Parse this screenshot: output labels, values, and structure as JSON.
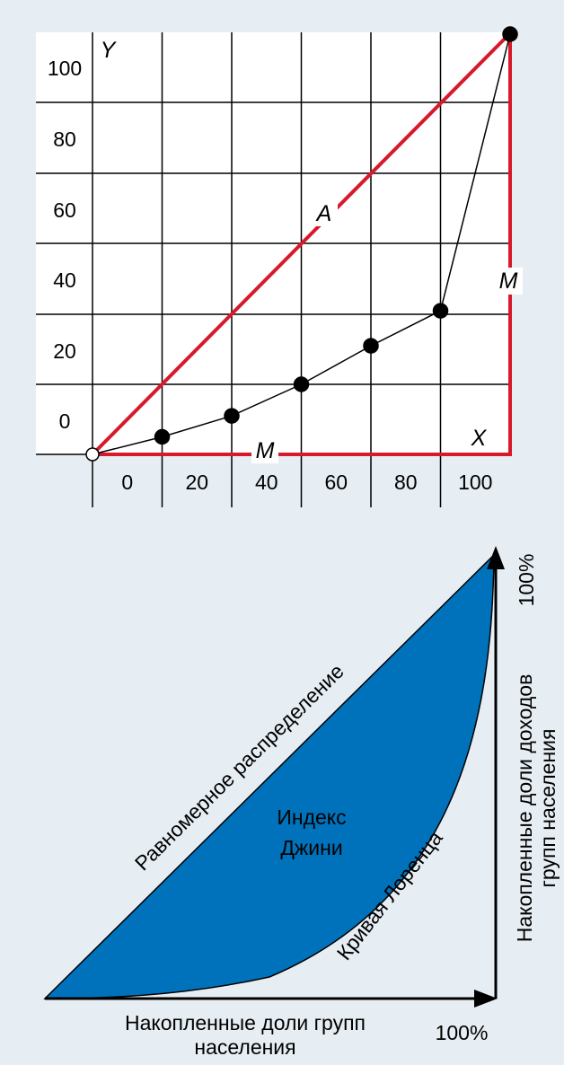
{
  "chart_data": [
    {
      "type": "line",
      "title": "",
      "xlabel": "",
      "ylabel": "",
      "axis_letters": {
        "y": "Y",
        "x": "X"
      },
      "x_ticks": [
        "0",
        "20",
        "40",
        "60",
        "80",
        "100"
      ],
      "y_ticks": [
        "100",
        "80",
        "60",
        "40",
        "20",
        "0"
      ],
      "grid": true,
      "series": [
        {
          "label": "A",
          "color": "#d7192b",
          "x": [
            0,
            120
          ],
          "y": [
            0,
            120
          ]
        },
        {
          "label": "M",
          "color": "#d7192b",
          "x": [
            0,
            120,
            120
          ],
          "y": [
            0,
            0,
            120
          ]
        },
        {
          "color": "#000000",
          "markers": "filled-circle",
          "x": [
            0,
            20,
            40,
            60,
            80,
            100,
            120
          ],
          "y": [
            0,
            5,
            11,
            20,
            31,
            41,
            120
          ]
        }
      ],
      "annotations": [
        "A",
        "M",
        "M"
      ]
    },
    {
      "type": "area",
      "title": "",
      "fill_color": "#0072bc",
      "xlabel": "Накопленные доли групп населения",
      "ylabel": "Накопленные доли доходов групп населения",
      "x_end_label": "100%",
      "y_end_label": "100%",
      "diagonal_label": "Равномерное распределение",
      "curve_label": "Кривая Лоренца",
      "area_label": "Индекс Джини"
    }
  ]
}
